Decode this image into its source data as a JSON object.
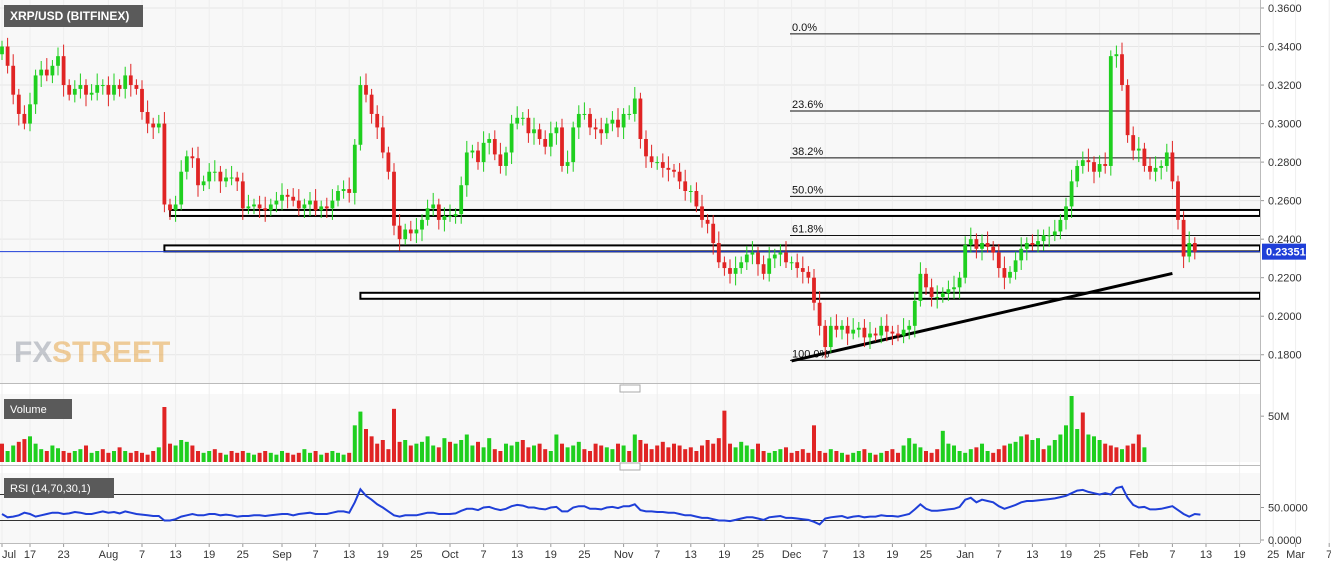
{
  "chart_data": {
    "type": "candlestick",
    "title": "XRP/USD (BITFINEX)",
    "brand": {
      "fx": "FX",
      "street": "STREET"
    },
    "colors": {
      "up": "#1fcf1f",
      "down": "#e02424",
      "rsi": "#1f3fd8",
      "fib": "#000000",
      "bg": "#f8f8f8"
    },
    "price_axis": {
      "min": 0.17,
      "max": 0.36,
      "ticks": [
        "0.3600",
        "0.3400",
        "0.3200",
        "0.3000",
        "0.2800",
        "0.2600",
        "0.2400",
        "0.2200",
        "0.2000",
        "0.1800"
      ]
    },
    "last_price": {
      "label": "0.23351",
      "value": 0.23351
    },
    "fibonacci": [
      {
        "label": "0.0%",
        "value": 0.3466
      },
      {
        "label": "23.6%",
        "value": 0.3065
      },
      {
        "label": "38.2%",
        "value": 0.2822
      },
      {
        "label": "50.0%",
        "value": 0.2622
      },
      {
        "label": "61.8%",
        "value": 0.2419
      },
      {
        "label": "100.0%",
        "value": 0.1771
      }
    ],
    "support_resistance": [
      {
        "value": 0.2536,
        "from_day": 30
      },
      {
        "value": 0.2352,
        "from_day": 29
      },
      {
        "value": 0.2106,
        "from_day": 64
      }
    ],
    "trendline": {
      "from": {
        "day": 141,
        "value": 0.1768
      },
      "to": {
        "day": 209,
        "value": 0.2222
      }
    },
    "x_axis": {
      "labels": [
        {
          "text": "Jul",
          "day": 0
        },
        {
          "text": "17",
          "day": 5
        },
        {
          "text": "23",
          "day": 11
        },
        {
          "text": "Aug",
          "day": 19
        },
        {
          "text": "7",
          "day": 25
        },
        {
          "text": "13",
          "day": 31
        },
        {
          "text": "19",
          "day": 37
        },
        {
          "text": "25",
          "day": 43
        },
        {
          "text": "Sep",
          "day": 50
        },
        {
          "text": "7",
          "day": 56
        },
        {
          "text": "13",
          "day": 62
        },
        {
          "text": "19",
          "day": 68
        },
        {
          "text": "25",
          "day": 74
        },
        {
          "text": "Oct",
          "day": 80
        },
        {
          "text": "7",
          "day": 86
        },
        {
          "text": "13",
          "day": 92
        },
        {
          "text": "19",
          "day": 98
        },
        {
          "text": "25",
          "day": 104
        },
        {
          "text": "Nov",
          "day": 111
        },
        {
          "text": "7",
          "day": 117
        },
        {
          "text": "13",
          "day": 123
        },
        {
          "text": "19",
          "day": 129
        },
        {
          "text": "25",
          "day": 135
        },
        {
          "text": "Dec",
          "day": 141
        },
        {
          "text": "7",
          "day": 147
        },
        {
          "text": "13",
          "day": 153
        },
        {
          "text": "19",
          "day": 159
        },
        {
          "text": "25",
          "day": 165
        },
        {
          "text": "Jan",
          "day": 172
        },
        {
          "text": "7",
          "day": 178
        },
        {
          "text": "13",
          "day": 184
        },
        {
          "text": "19",
          "day": 190
        },
        {
          "text": "25",
          "day": 196
        },
        {
          "text": "Feb",
          "day": 203
        },
        {
          "text": "7",
          "day": 209
        },
        {
          "text": "13",
          "day": 215
        },
        {
          "text": "19",
          "day": 221
        },
        {
          "text": "25",
          "day": 227
        },
        {
          "text": "Mar",
          "day": 231
        },
        {
          "text": "7",
          "day": 237
        }
      ]
    },
    "closes": [
      0.34,
      0.33,
      0.315,
      0.305,
      0.3,
      0.31,
      0.325,
      0.328,
      0.325,
      0.33,
      0.335,
      0.32,
      0.315,
      0.318,
      0.32,
      0.315,
      0.316,
      0.32,
      0.32,
      0.315,
      0.32,
      0.318,
      0.325,
      0.32,
      0.318,
      0.306,
      0.3,
      0.298,
      0.3,
      0.258,
      0.255,
      0.258,
      0.275,
      0.283,
      0.282,
      0.268,
      0.27,
      0.275,
      0.275,
      0.27,
      0.272,
      0.272,
      0.27,
      0.256,
      0.257,
      0.258,
      0.256,
      0.255,
      0.258,
      0.26,
      0.263,
      0.262,
      0.26,
      0.256,
      0.258,
      0.26,
      0.255,
      0.257,
      0.256,
      0.26,
      0.265,
      0.266,
      0.264,
      0.289,
      0.32,
      0.315,
      0.305,
      0.298,
      0.285,
      0.275,
      0.247,
      0.24,
      0.245,
      0.243,
      0.245,
      0.25,
      0.256,
      0.258,
      0.25,
      0.252,
      0.252,
      0.253,
      0.268,
      0.285,
      0.286,
      0.28,
      0.29,
      0.292,
      0.284,
      0.278,
      0.285,
      0.3,
      0.303,
      0.303,
      0.295,
      0.297,
      0.292,
      0.288,
      0.295,
      0.298,
      0.278,
      0.28,
      0.298,
      0.305,
      0.305,
      0.298,
      0.297,
      0.295,
      0.3,
      0.302,
      0.298,
      0.305,
      0.305,
      0.313,
      0.292,
      0.283,
      0.28,
      0.28,
      0.277,
      0.276,
      0.275,
      0.27,
      0.265,
      0.265,
      0.257,
      0.25,
      0.248,
      0.238,
      0.228,
      0.225,
      0.222,
      0.225,
      0.228,
      0.232,
      0.233,
      0.227,
      0.222,
      0.23,
      0.232,
      0.233,
      0.228,
      0.228,
      0.225,
      0.223,
      0.22,
      0.207,
      0.195,
      0.184,
      0.195,
      0.193,
      0.195,
      0.191,
      0.193,
      0.194,
      0.189,
      0.191,
      0.19,
      0.195,
      0.192,
      0.191,
      0.19,
      0.193,
      0.195,
      0.208,
      0.222,
      0.215,
      0.21,
      0.21,
      0.212,
      0.214,
      0.215,
      0.22,
      0.237,
      0.24,
      0.235,
      0.238,
      0.236,
      0.233,
      0.225,
      0.22,
      0.223,
      0.229,
      0.235,
      0.238,
      0.237,
      0.239,
      0.242,
      0.242,
      0.244,
      0.25,
      0.257,
      0.27,
      0.278,
      0.281,
      0.28,
      0.275,
      0.279,
      0.278,
      0.335,
      0.336,
      0.32,
      0.294,
      0.286,
      0.287,
      0.278,
      0.275,
      0.277,
      0.278,
      0.285,
      0.27,
      0.25,
      0.231,
      0.238,
      0.2335
    ],
    "volume": {
      "label": "Volume",
      "tick": "50M",
      "max": 72,
      "values": [
        20,
        12,
        18,
        22,
        25,
        28,
        20,
        14,
        12,
        18,
        15,
        12,
        10,
        12,
        14,
        18,
        10,
        12,
        14,
        10,
        12,
        16,
        12,
        10,
        12,
        10,
        8,
        12,
        16,
        60,
        20,
        18,
        24,
        22,
        18,
        12,
        10,
        12,
        14,
        10,
        8,
        12,
        10,
        12,
        10,
        8,
        10,
        12,
        10,
        8,
        12,
        10,
        8,
        10,
        14,
        10,
        12,
        8,
        10,
        12,
        10,
        8,
        10,
        40,
        55,
        36,
        28,
        20,
        24,
        14,
        58,
        22,
        24,
        18,
        20,
        22,
        28,
        18,
        16,
        26,
        22,
        20,
        24,
        30,
        18,
        22,
        16,
        26,
        14,
        12,
        20,
        18,
        22,
        24,
        16,
        18,
        20,
        14,
        12,
        30,
        20,
        16,
        18,
        22,
        14,
        12,
        20,
        18,
        16,
        14,
        20,
        18,
        12,
        30,
        24,
        20,
        14,
        18,
        22,
        16,
        20,
        18,
        14,
        16,
        12,
        18,
        24,
        20,
        26,
        56,
        20,
        16,
        22,
        18,
        14,
        20,
        12,
        10,
        12,
        14,
        16,
        10,
        12,
        14,
        10,
        40,
        12,
        10,
        14,
        12,
        10,
        8,
        10,
        12,
        14,
        10,
        8,
        10,
        12,
        14,
        10,
        18,
        26,
        20,
        16,
        12,
        10,
        14,
        34,
        20,
        18,
        12,
        10,
        14,
        16,
        20,
        12,
        10,
        14,
        18,
        20,
        22,
        28,
        30,
        24,
        26,
        14,
        18,
        24,
        30,
        40,
        72,
        36,
        54,
        30,
        28,
        24,
        20,
        18,
        16,
        14,
        18,
        20,
        30,
        16
      ],
      "up": [
        0,
        1,
        1,
        0,
        0,
        1,
        1,
        1,
        0,
        1,
        1,
        0,
        0,
        1,
        1,
        0,
        1,
        1,
        0,
        0,
        1,
        0,
        1,
        0,
        0,
        0,
        0,
        0,
        1,
        0,
        0,
        1,
        1,
        1,
        0,
        0,
        1,
        1,
        0,
        0,
        1,
        0,
        0,
        0,
        1,
        1,
        0,
        0,
        1,
        1,
        1,
        0,
        0,
        0,
        1,
        1,
        0,
        1,
        0,
        1,
        1,
        1,
        0,
        1,
        1,
        0,
        0,
        0,
        0,
        0,
        0,
        0,
        1,
        0,
        1,
        1,
        1,
        1,
        0,
        1,
        0,
        1,
        1,
        1,
        1,
        0,
        1,
        1,
        0,
        0,
        1,
        1,
        1,
        0,
        0,
        1,
        0,
        0,
        1,
        1,
        0,
        1,
        1,
        1,
        0,
        0,
        0,
        0,
        1,
        1,
        0,
        1,
        0,
        1,
        0,
        0,
        0,
        0,
        0,
        0,
        0,
        0,
        0,
        0,
        0,
        0,
        0,
        0,
        0,
        0,
        0,
        1,
        1,
        1,
        1,
        0,
        0,
        1,
        1,
        1,
        0,
        0,
        0,
        0,
        0,
        0,
        0,
        0,
        1,
        0,
        1,
        0,
        1,
        1,
        0,
        1,
        0,
        1,
        0,
        0,
        0,
        1,
        1,
        1,
        1,
        0,
        0,
        0,
        1,
        1,
        1,
        1,
        1,
        1,
        0,
        1,
        1,
        0,
        0,
        0,
        1,
        1,
        1,
        0,
        1,
        1,
        0,
        1,
        1,
        1,
        1,
        1,
        1,
        0,
        1,
        1,
        1,
        0,
        0,
        0,
        1,
        0,
        0,
        0,
        1,
        1,
        1,
        0,
        0,
        0,
        1,
        0
      ]
    },
    "rsi": {
      "label": "RSI (14,70,30,1)",
      "overbought": 70,
      "oversold": 30,
      "ticks": [
        "50.0000",
        "0.0000"
      ],
      "values": [
        40,
        35,
        36,
        38,
        42,
        40,
        36,
        38,
        40,
        42,
        42,
        40,
        41,
        43,
        42,
        40,
        40,
        42,
        44,
        42,
        43,
        41,
        44,
        42,
        40,
        39,
        38,
        37,
        37,
        30,
        30,
        32,
        36,
        38,
        40,
        38,
        38,
        40,
        40,
        38,
        39,
        38,
        36,
        37,
        37,
        38,
        38,
        37,
        38,
        39,
        40,
        40,
        38,
        40,
        41,
        42,
        40,
        40,
        40,
        42,
        44,
        44,
        42,
        58,
        78,
        68,
        62,
        55,
        50,
        44,
        38,
        36,
        38,
        38,
        38,
        40,
        42,
        42,
        40,
        40,
        40,
        41,
        45,
        48,
        48,
        46,
        50,
        51,
        48,
        46,
        48,
        52,
        54,
        53,
        50,
        50,
        48,
        47,
        50,
        51,
        44,
        44,
        50,
        52,
        52,
        48,
        48,
        47,
        50,
        51,
        49,
        52,
        52,
        55,
        46,
        44,
        44,
        43,
        43,
        42,
        42,
        40,
        38,
        38,
        36,
        34,
        34,
        32,
        30,
        30,
        29,
        31,
        33,
        35,
        35,
        33,
        31,
        35,
        36,
        37,
        34,
        34,
        33,
        32,
        31,
        28,
        24,
        33,
        35,
        36,
        37,
        34,
        36,
        37,
        35,
        36,
        36,
        38,
        37,
        37,
        36,
        38,
        40,
        47,
        55,
        48,
        45,
        45,
        46,
        47,
        48,
        51,
        62,
        65,
        58,
        62,
        60,
        58,
        52,
        48,
        51,
        54,
        58,
        60,
        60,
        61,
        62,
        63,
        64,
        66,
        68,
        72,
        76,
        77,
        74,
        72,
        70,
        72,
        70,
        80,
        82,
        65,
        54,
        50,
        51,
        47,
        47,
        48,
        50,
        52,
        46,
        40,
        36,
        40,
        39
      ]
    }
  }
}
